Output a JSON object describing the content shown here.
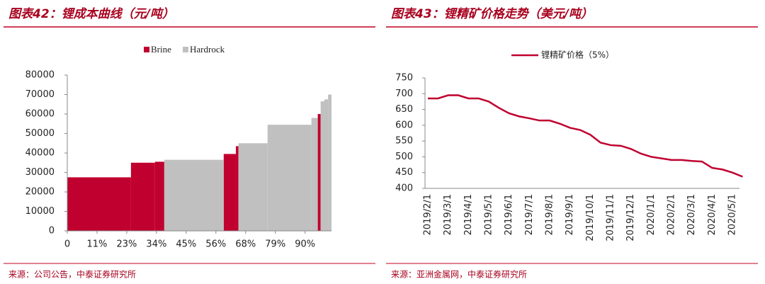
{
  "chart_data": [
    {
      "type": "bar",
      "title": "图表42：锂成本曲线（元/吨）",
      "source": "来源：公司公告，中泰证券研究所",
      "series": [
        {
          "name": "Brine",
          "color": "#c0002f",
          "values": [
            27500,
            35000,
            35500,
            39500,
            43500,
            60000
          ],
          "x": [
            [
              0,
              24.1
            ],
            [
              24.1,
              33.2
            ],
            [
              33.2,
              36.7
            ],
            [
              59.2,
              63.8
            ],
            [
              63.8,
              64.8
            ],
            [
              94.8,
              95.9
            ]
          ]
        },
        {
          "name": "Hardrock",
          "color": "#c0c0c0",
          "values": [
            36500,
            45000,
            54500,
            58000,
            66500,
            67500,
            70000
          ],
          "x": [
            [
              36.7,
              59.2
            ],
            [
              64.8,
              75.8
            ],
            [
              75.8,
              92.4
            ],
            [
              92.4,
              94.8
            ],
            [
              95.9,
              97.3
            ],
            [
              97.3,
              98.7
            ],
            [
              98.7,
              100
            ]
          ]
        }
      ],
      "xlim": [
        0,
        100
      ],
      "xticks": [
        0,
        {
          "value": 11.25,
          "label": "11%"
        },
        {
          "value": 22.5,
          "label": "23%"
        },
        {
          "value": 33.75,
          "label": "34%"
        },
        {
          "value": 45,
          "label": "45%"
        },
        {
          "value": 56.25,
          "label": "56%"
        },
        {
          "value": 67.5,
          "label": "68%"
        },
        {
          "value": 78.75,
          "label": "79%"
        },
        {
          "value": 90,
          "label": "90%"
        }
      ],
      "xtick_suffix": "%",
      "ylim": [
        0,
        80000
      ],
      "yticks": [
        0,
        10000,
        20000,
        30000,
        40000,
        50000,
        60000,
        70000,
        80000
      ]
    },
    {
      "type": "line",
      "title": "图表43：锂精矿价格走势（美元/吨）",
      "source": "来源：亚洲金属网，中泰证券研究所",
      "categories": [
        "2019/2/1",
        null,
        "2019/3/1",
        null,
        "2019/4/1",
        null,
        "2019/5/1",
        null,
        "2019/6/1",
        null,
        "2019/7/1",
        null,
        "2019/8/1",
        null,
        "2019/9/1",
        null,
        "2019/10/1",
        null,
        "2019/11/1",
        null,
        "2019/12/1",
        null,
        "2020/1/1",
        null,
        "2020/2/1",
        null,
        "2020/3/1",
        null,
        "2020/4/1",
        null,
        "2020/5/1",
        null
      ],
      "series": [
        {
          "name": "锂精矿价格（5%）",
          "color": "#c0002f",
          "values": [
            685,
            685,
            695,
            695,
            685,
            685,
            675,
            655,
            638,
            628,
            622,
            615,
            615,
            605,
            592,
            585,
            570,
            545,
            537,
            535,
            525,
            510,
            500,
            495,
            490,
            490,
            487,
            485,
            465,
            460,
            450,
            437
          ]
        }
      ],
      "ylim": [
        400,
        750
      ],
      "yticks": [
        400,
        450,
        500,
        550,
        600,
        650,
        700,
        750
      ]
    }
  ]
}
